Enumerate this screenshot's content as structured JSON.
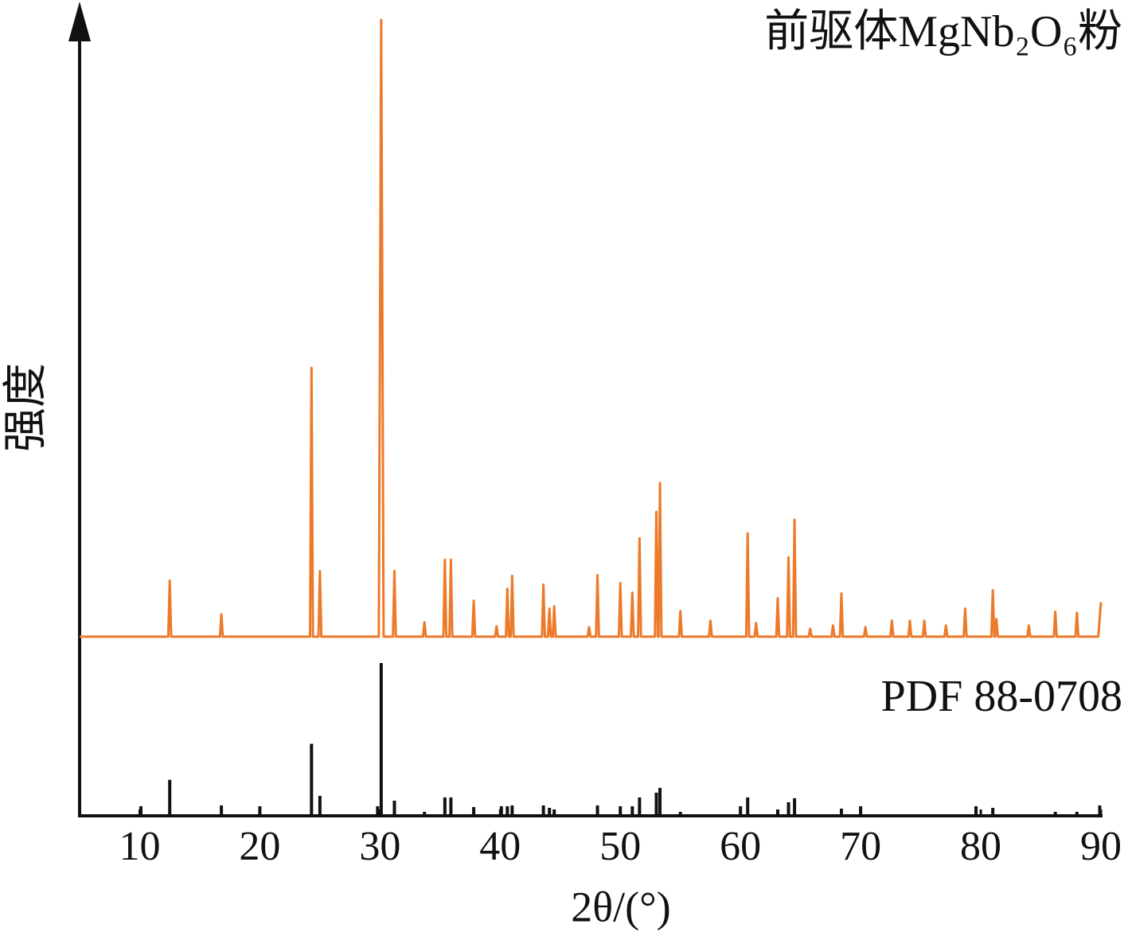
{
  "chart_data": {
    "type": "line",
    "xlabel": "2θ/(°)",
    "ylabel": "强度",
    "xlim": [
      5,
      90
    ],
    "xticks": [
      10,
      20,
      30,
      40,
      50,
      60,
      70,
      80,
      90
    ],
    "ylim": [
      0,
      100
    ],
    "series": [
      {
        "name": "前驱体MgNb₂O₆粉",
        "color": "#ec7a2a",
        "style": "line",
        "x": [
          5,
          12.38,
          12.5,
          12.62,
          16.68,
          16.8,
          16.92,
          24.18,
          24.3,
          24.42,
          24.88,
          25.0,
          25.12,
          29.9,
          30.1,
          30.3,
          31.08,
          31.2,
          31.32,
          33.58,
          33.7,
          33.82,
          35.28,
          35.4,
          35.52,
          35.78,
          35.9,
          36.02,
          37.68,
          37.8,
          37.92,
          39.58,
          39.7,
          39.82,
          40.48,
          40.6,
          40.72,
          40.88,
          41.0,
          41.12,
          43.48,
          43.6,
          43.72,
          43.98,
          44.1,
          44.22,
          44.38,
          44.5,
          44.62,
          47.28,
          47.4,
          47.52,
          47.98,
          48.1,
          48.22,
          49.88,
          50.0,
          50.12,
          50.88,
          51.0,
          51.12,
          51.48,
          51.6,
          51.72,
          52.88,
          53.0,
          53.12,
          53.18,
          53.3,
          53.42,
          54.88,
          55.0,
          55.12,
          57.38,
          57.5,
          57.62,
          60.48,
          60.6,
          60.72,
          61.18,
          61.3,
          61.42,
          62.98,
          63.1,
          63.22,
          63.88,
          64.0,
          64.12,
          64.38,
          64.5,
          64.62,
          65.68,
          65.8,
          65.92,
          67.58,
          67.7,
          67.82,
          68.28,
          68.4,
          68.52,
          70.28,
          70.4,
          70.52,
          72.48,
          72.6,
          72.72,
          73.98,
          74.1,
          74.22,
          75.18,
          75.3,
          75.42,
          76.98,
          77.1,
          77.22,
          78.58,
          78.7,
          78.82,
          80.88,
          81.0,
          81.12,
          81.18,
          81.3,
          81.42,
          83.88,
          84.0,
          84.12,
          86.08,
          86.2,
          86.32,
          87.88,
          88.0,
          88.12,
          89.78,
          90
        ],
        "values": [
          22.4,
          22.4,
          29.4,
          22.4,
          22.4,
          25.2,
          22.4,
          22.4,
          56.0,
          22.4,
          22.4,
          30.6,
          22.4,
          22.4,
          99.5,
          22.4,
          22.4,
          30.6,
          22.4,
          22.4,
          24.2,
          22.4,
          22.4,
          32.0,
          22.4,
          22.4,
          32.0,
          22.4,
          22.4,
          26.9,
          22.4,
          22.4,
          23.7,
          22.4,
          22.4,
          28.4,
          22.4,
          22.4,
          30.0,
          22.4,
          22.4,
          28.9,
          22.4,
          22.4,
          25.9,
          22.4,
          22.4,
          26.2,
          22.4,
          22.4,
          23.6,
          22.4,
          22.4,
          30.1,
          22.4,
          22.4,
          29.1,
          22.4,
          22.4,
          27.9,
          22.4,
          22.4,
          34.7,
          22.4,
          22.4,
          38.0,
          22.4,
          22.4,
          41.6,
          22.4,
          22.4,
          25.6,
          22.4,
          22.4,
          24.4,
          22.4,
          22.4,
          35.3,
          22.4,
          22.4,
          24.1,
          22.4,
          22.4,
          27.2,
          22.4,
          22.4,
          32.3,
          22.4,
          22.4,
          37.0,
          22.4,
          22.4,
          23.4,
          22.4,
          22.4,
          23.8,
          22.4,
          22.4,
          27.8,
          22.4,
          22.4,
          23.6,
          22.4,
          22.4,
          24.4,
          22.4,
          22.4,
          24.4,
          22.4,
          22.4,
          24.4,
          22.4,
          22.4,
          23.8,
          22.4,
          22.4,
          25.9,
          22.4,
          22.4,
          28.2,
          22.4,
          22.4,
          24.6,
          22.4,
          22.4,
          23.8,
          22.4,
          22.4,
          25.5,
          22.4,
          22.4,
          25.4,
          22.4,
          22.4,
          26.7
        ]
      },
      {
        "name": "PDF 88-0708",
        "color": "#111111",
        "style": "stem",
        "x": [
          10.1,
          12.5,
          16.8,
          20.0,
          24.3,
          25.0,
          29.8,
          30.1,
          31.2,
          33.7,
          35.4,
          35.9,
          37.8,
          40.1,
          40.6,
          41.0,
          43.6,
          44.1,
          44.5,
          48.1,
          50.0,
          51.0,
          51.6,
          53.0,
          53.3,
          55.0,
          60.0,
          60.6,
          63.1,
          64.0,
          64.5,
          68.4,
          70.0,
          79.6,
          81.0,
          86.2,
          88.0,
          89.9
        ],
        "values": [
          1.2,
          4.5,
          1.3,
          1.2,
          9.0,
          2.5,
          1.2,
          19.1,
          1.9,
          0.5,
          2.3,
          2.3,
          1.1,
          1.2,
          1.2,
          1.3,
          1.3,
          1.0,
          0.8,
          1.3,
          1.2,
          1.2,
          2.3,
          2.9,
          3.5,
          0.5,
          1.2,
          2.3,
          0.8,
          1.7,
          2.2,
          0.9,
          1.2,
          1.2,
          1.0,
          0.5,
          0.5,
          1.3
        ]
      }
    ]
  }
}
